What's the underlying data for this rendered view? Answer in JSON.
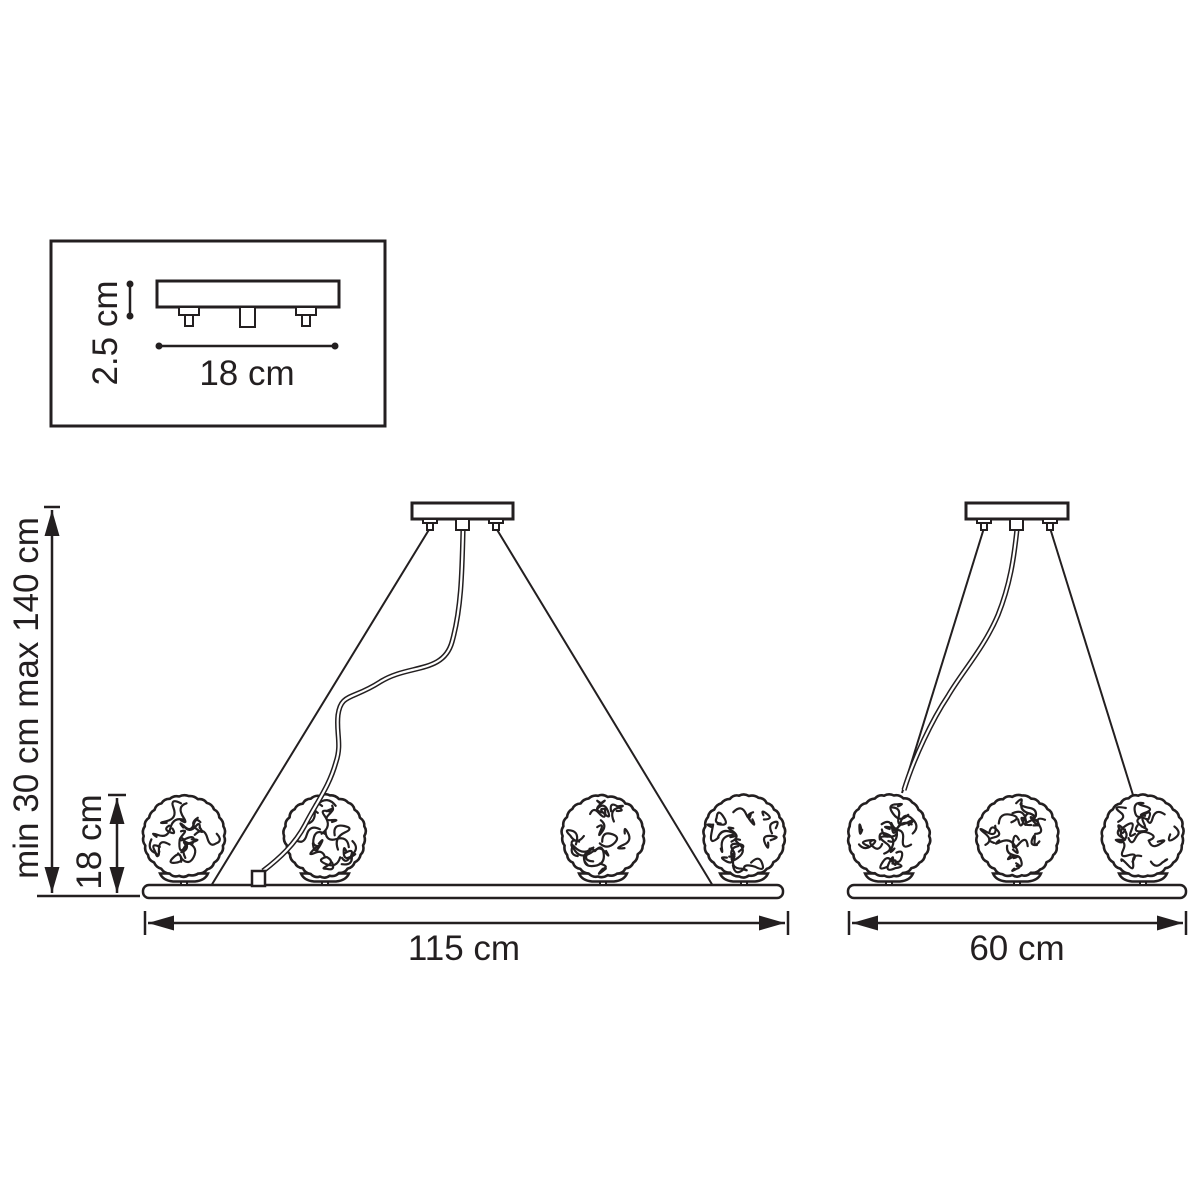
{
  "page": {
    "background": "#ffffff",
    "line_color": "#231f20",
    "description": "Pendant chandelier installation dimension diagram"
  },
  "canopy_inset": {
    "height_label": "2.5 cm",
    "width_label": "18 cm"
  },
  "dimensions": {
    "suspension_height_label": "min 30 cm max 140 cm",
    "shade_height_label": "18 cm"
  },
  "fixtures": {
    "left": {
      "lamp_count": 4,
      "width_label": "115 cm"
    },
    "right": {
      "lamp_count": 3,
      "width_label": "60 cm"
    }
  }
}
